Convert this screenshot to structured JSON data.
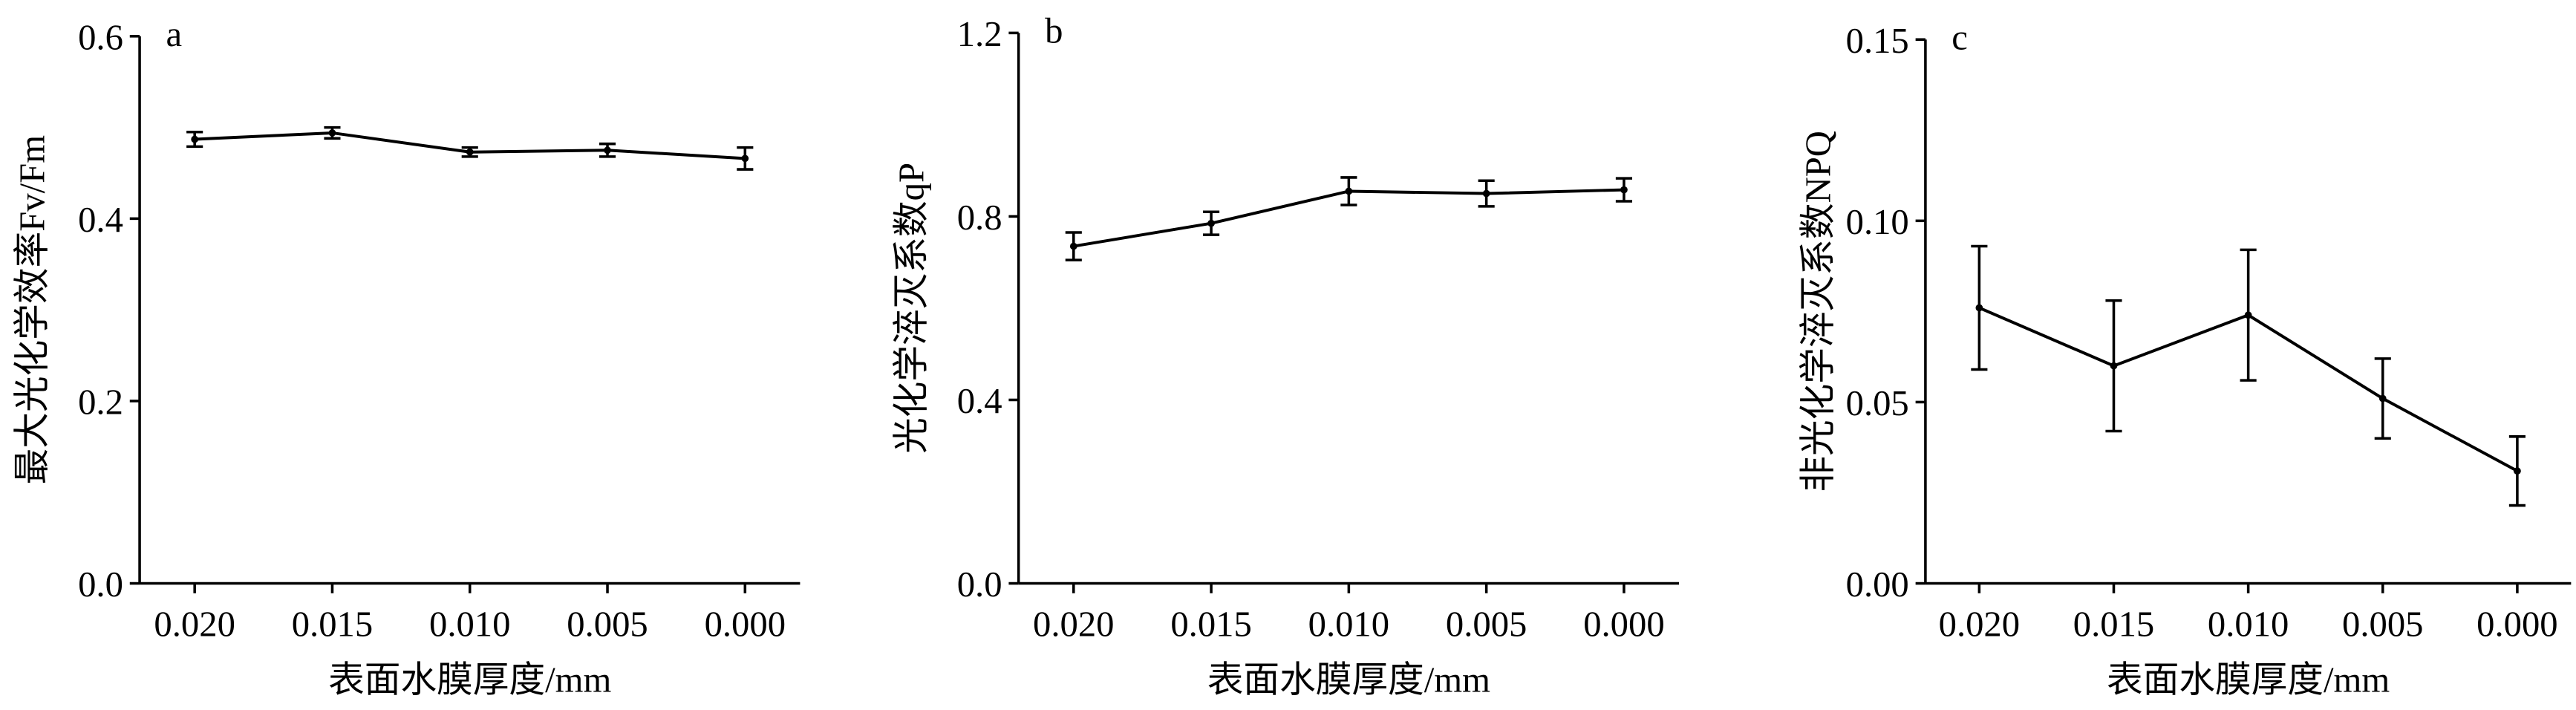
{
  "chart_data": [
    {
      "type": "line",
      "panel": "a",
      "ylabel": "最大光化学效率Fv/Fm",
      "xlabel": "表面水膜厚度/mm",
      "x": [
        0.02,
        0.015,
        0.01,
        0.005,
        0
      ],
      "values": [
        0.487,
        0.494,
        0.473,
        0.475,
        0.466
      ],
      "errors": [
        0.008,
        0.006,
        0.005,
        0.007,
        0.012
      ],
      "color": "#000000",
      "xlim": [
        0.022,
        -0.002
      ],
      "ylim": [
        0,
        0.6
      ],
      "xticks": [
        {
          "value": 0.02,
          "label": "0.020"
        },
        {
          "value": 0.015,
          "label": "0.015"
        },
        {
          "value": 0.01,
          "label": "0.010"
        },
        {
          "value": 0.005,
          "label": "0.005"
        },
        {
          "value": 0,
          "label": "0.000"
        }
      ],
      "yticks": [
        {
          "value": 0,
          "label": "0.0"
        },
        {
          "value": 0.2,
          "label": "0.2"
        },
        {
          "value": 0.4,
          "label": "0.4"
        },
        {
          "value": 0.6,
          "label": "0.6"
        }
      ]
    },
    {
      "type": "line",
      "panel": "b",
      "ylabel": "光化学淬灭系数qP",
      "xlabel": "表面水膜厚度/mm",
      "x": [
        0.02,
        0.015,
        0.01,
        0.005,
        0
      ],
      "values": [
        0.735,
        0.785,
        0.855,
        0.85,
        0.858
      ],
      "errors": [
        0.03,
        0.025,
        0.03,
        0.028,
        0.025
      ],
      "color": "#000000",
      "xlim": [
        0.022,
        -0.002
      ],
      "ylim": [
        0,
        1.2
      ],
      "xticks": [
        {
          "value": 0.02,
          "label": "0.020"
        },
        {
          "value": 0.015,
          "label": "0.015"
        },
        {
          "value": 0.01,
          "label": "0.010"
        },
        {
          "value": 0.005,
          "label": "0.005"
        },
        {
          "value": 0,
          "label": "0.000"
        }
      ],
      "yticks": [
        {
          "value": 0,
          "label": "0.0"
        },
        {
          "value": 0.4,
          "label": "0.4"
        },
        {
          "value": 0.8,
          "label": "0.8"
        },
        {
          "value": 1.2,
          "label": "1.2"
        }
      ]
    },
    {
      "type": "line",
      "panel": "c",
      "ylabel": "非光化学淬灭系数NPQ",
      "xlabel": "表面水膜厚度/mm",
      "x": [
        0.02,
        0.015,
        0.01,
        0.005,
        0
      ],
      "values": [
        0.076,
        0.06,
        0.074,
        0.051,
        0.031
      ],
      "errors": [
        0.017,
        0.018,
        0.018,
        0.011,
        0.0095
      ],
      "color": "#000000",
      "xlim": [
        0.022,
        -0.002
      ],
      "ylim": [
        0,
        0.15
      ],
      "xticks": [
        {
          "value": 0.02,
          "label": "0.020"
        },
        {
          "value": 0.015,
          "label": "0.015"
        },
        {
          "value": 0.01,
          "label": "0.010"
        },
        {
          "value": 0.005,
          "label": "0.005"
        },
        {
          "value": 0,
          "label": "0.000"
        }
      ],
      "yticks": [
        {
          "value": 0,
          "label": "0.00"
        },
        {
          "value": 0.05,
          "label": "0.05"
        },
        {
          "value": 0.1,
          "label": "0.10"
        },
        {
          "value": 0.15,
          "label": "0.15"
        }
      ]
    }
  ]
}
